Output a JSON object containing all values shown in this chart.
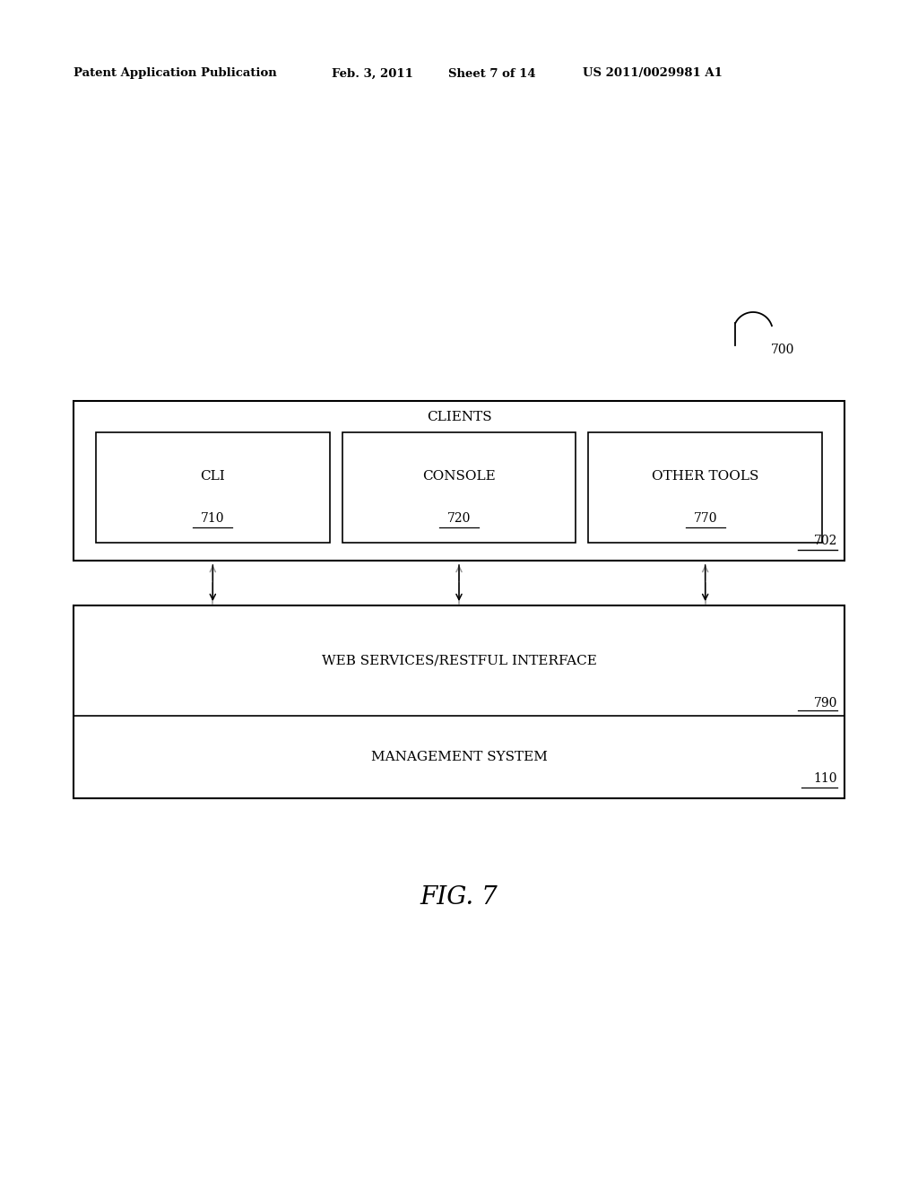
{
  "bg_color": "#ffffff",
  "header_text": "Patent Application Publication",
  "header_date": "Feb. 3, 2011",
  "header_sheet": "Sheet 7 of 14",
  "header_patent": "US 2011/0029981 A1",
  "fig_label": "FIG. 7",
  "ref_700": "700",
  "ref_702": "702",
  "ref_790": "790",
  "ref_110": "110",
  "clients_label": "CLIENTS",
  "box1_label": "CLI",
  "box1_ref": "710",
  "box2_label": "CONSOLE",
  "box2_ref": "720",
  "box3_label": "OTHER TOOLS",
  "box3_ref": "770",
  "web_label": "WEB SERVICES/RESTFUL INTERFACE",
  "mgmt_label": "MANAGEMENT SYSTEM"
}
